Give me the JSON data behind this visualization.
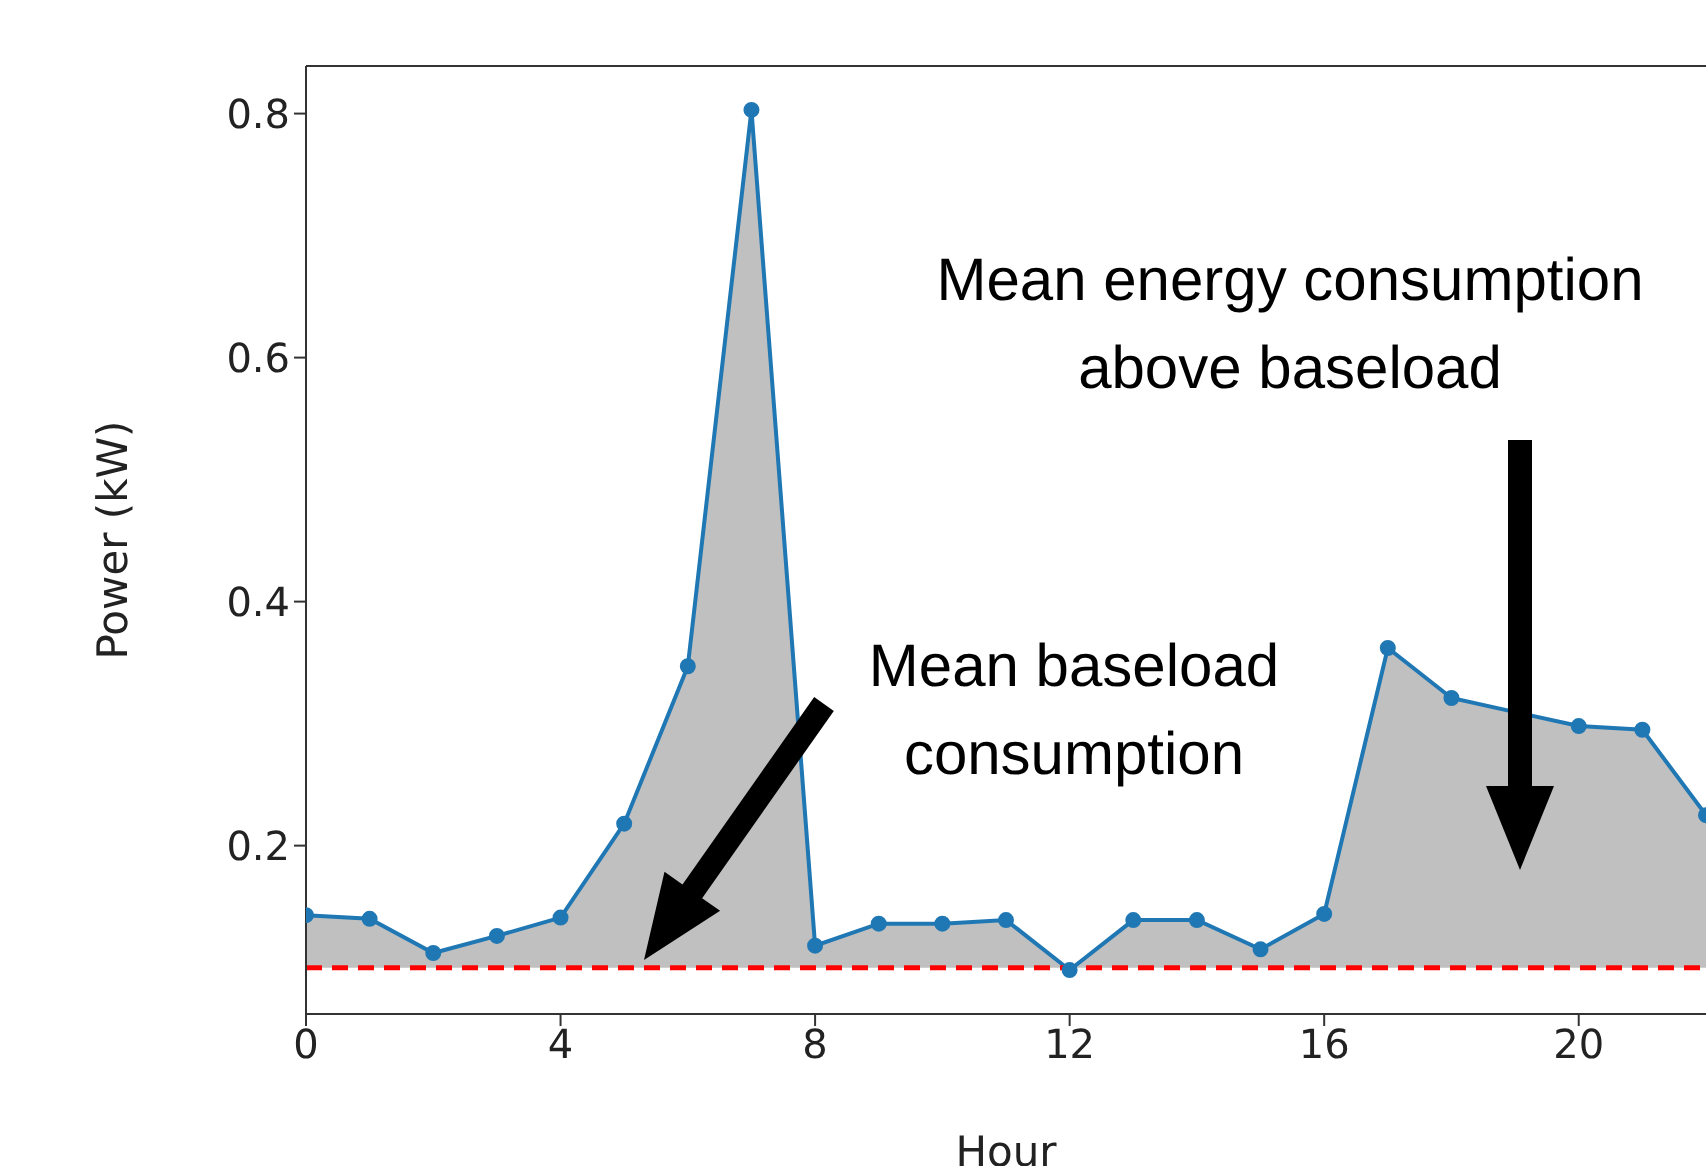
{
  "chart_data": {
    "type": "area",
    "xlabel": "Hour",
    "ylabel": "Power (kW)",
    "x": [
      0,
      1,
      2,
      3,
      4,
      5,
      6,
      7,
      8,
      9,
      10,
      11,
      12,
      13,
      14,
      15,
      16,
      17,
      18,
      19,
      20,
      21,
      22
    ],
    "series": [
      {
        "color": "#1f77b4",
        "values": [
          0.143,
          0.14,
          0.112,
          0.126,
          0.141,
          0.218,
          0.347,
          0.803,
          0.118,
          0.136,
          0.136,
          0.139,
          0.098,
          0.139,
          0.139,
          0.115,
          0.144,
          0.362,
          0.321,
          null,
          0.298,
          0.295,
          0.225
        ]
      }
    ],
    "marker": "circle",
    "xlim": [
      0,
      22
    ],
    "xticks": [
      0,
      4,
      8,
      12,
      16,
      20
    ],
    "ylim": [
      0.062,
      0.839
    ],
    "yticks": [
      0.2,
      0.4,
      0.6,
      0.8
    ],
    "grid": false,
    "legend": false,
    "ref_lines": [
      {
        "axis": "y",
        "value": 0.1,
        "color": "#ff0000",
        "line_style": "dashed"
      }
    ],
    "annotations": [
      "Mean energy consumption above baseload",
      "Mean baseload consumption"
    ]
  }
}
